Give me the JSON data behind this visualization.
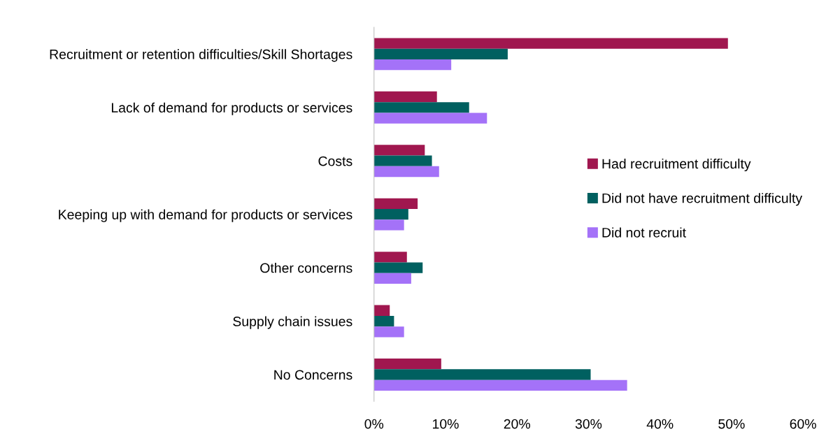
{
  "chart_data": {
    "type": "bar",
    "orientation": "horizontal",
    "categories": [
      "Recruitment or retention difficulties/Skill Shortages",
      "Lack of demand for products or services",
      "Costs",
      "Keeping up with demand for products or services",
      "Other concerns",
      "Supply chain issues",
      "No Concerns"
    ],
    "series": [
      {
        "name": "Had recruitment difficulty",
        "color": "#a0174f",
        "values": [
          49.5,
          8.8,
          7.1,
          6.1,
          4.6,
          2.2,
          9.4
        ]
      },
      {
        "name": "Did not have recruitment difficulty",
        "color": "#006060",
        "values": [
          18.7,
          13.3,
          8.1,
          4.8,
          6.8,
          2.8,
          30.3
        ]
      },
      {
        "name": "Did not recruit",
        "color": "#a472f8",
        "values": [
          10.8,
          15.8,
          9.1,
          4.2,
          5.2,
          4.2,
          35.4
        ]
      }
    ],
    "xlim": [
      0,
      60
    ],
    "xticks": [
      {
        "value": 0,
        "label": "0%"
      },
      {
        "value": 10,
        "label": "10%"
      },
      {
        "value": 20,
        "label": "20%"
      },
      {
        "value": 30,
        "label": "30%"
      },
      {
        "value": 40,
        "label": "40%"
      },
      {
        "value": 50,
        "label": "50%"
      },
      {
        "value": 60,
        "label": "60%"
      }
    ],
    "grid": false,
    "legend": "right"
  }
}
